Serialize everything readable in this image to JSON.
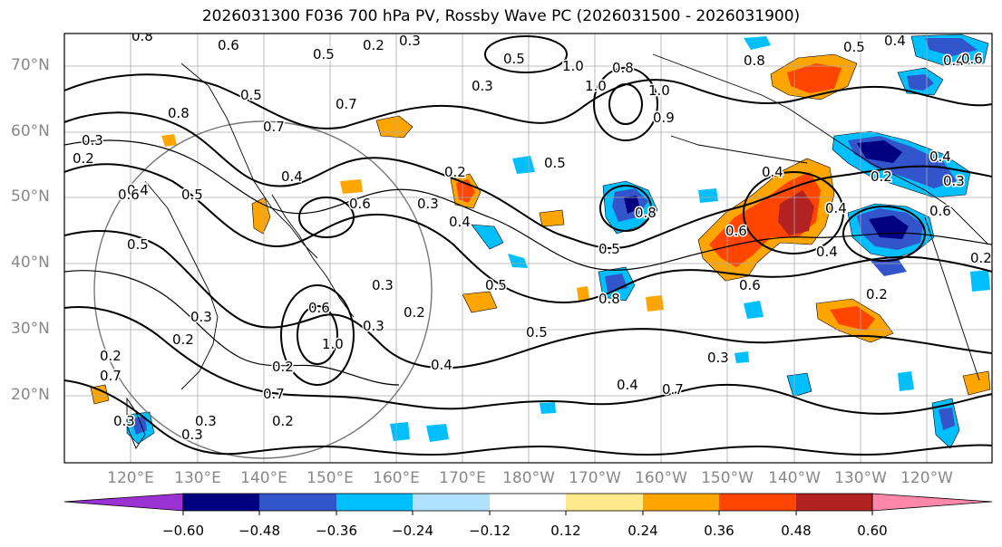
{
  "title": "2026031300 F036 700 hPa PV, Rossby Wave PC (2026031500 - 2026031900)",
  "lat_labels": [
    "70°N",
    "60°N",
    "50°N",
    "40°N",
    "30°N",
    "20°N"
  ],
  "lon_labels": [
    "120°E",
    "130°E",
    "140°E",
    "150°E",
    "160°E",
    "170°E",
    "180°W",
    "170°W",
    "160°W",
    "150°W",
    "140°W",
    "130°W",
    "120°W"
  ],
  "colorbar": {
    "ticks": [
      "−0.60",
      "−0.48",
      "−0.36",
      "−0.24",
      "−0.12",
      "0.12",
      "0.24",
      "0.36",
      "0.48",
      "0.60"
    ],
    "colors": [
      "#9b33d4",
      "#000080",
      "#3355cc",
      "#00bfff",
      "#b0e2ff",
      "#ffffff",
      "#ffe98a",
      "#ffa500",
      "#ff4500",
      "#b22222",
      "#ff88aa"
    ]
  },
  "colors": {
    "strong_negative": "#000080",
    "negative": "#3355cc",
    "weak_negative": "#00bfff",
    "weak_positive": "#ffa500",
    "positive": "#ff4500",
    "strong_positive": "#b22222"
  },
  "contour_labels": [
    "0.8",
    "0.2",
    "0.3",
    "0.6",
    "0.5",
    "0.4",
    "0.5",
    "0.8",
    "1.0",
    "0.5",
    "0.5",
    "0.4",
    "0.6",
    "0.7",
    "0.3",
    "0.2",
    "0.8",
    "0.7",
    "0.4",
    "0.5",
    "0.3",
    "0.5",
    "0.6",
    "0.2",
    "0.4",
    "0.3",
    "0.6",
    "0.4",
    "0.9",
    "1.0",
    "0.4",
    "0.6",
    "0.3",
    "0.2",
    "0.5",
    "0.8",
    "0.4",
    "0.2",
    "0.3",
    "0.3",
    "0.6",
    "1.0",
    "0.5",
    "0.2",
    "0.3",
    "0.2",
    "0.4",
    "0.2",
    "0.2",
    "0.5",
    "0.7",
    "0.3",
    "0.3",
    "0.4",
    "0.2",
    "0.4",
    "0.7",
    "0.3",
    "0.6",
    "0.6",
    "0.8",
    "0.5",
    "0.4",
    "0.8",
    "1.0",
    "0.7",
    "0.2",
    "0.3"
  ]
}
